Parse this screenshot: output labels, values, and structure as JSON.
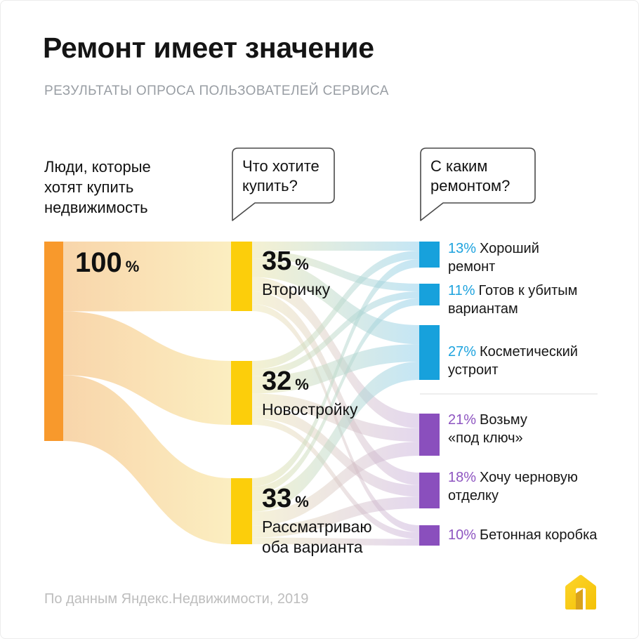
{
  "page": {
    "title": "Ремонт имеет значение",
    "subtitle": "РЕЗУЛЬТАТЫ ОПРОСА ПОЛЬЗОВАТЕЛЕЙ СЕРВИСА",
    "footer": "По данным Яндекс.Недвижимости, 2019",
    "logo": "yandex-realty-house"
  },
  "annotations": {
    "left_group": "Люди, которые\nхотят купить\nнедвижимость",
    "question_mid": "Что хотите\nкупить?",
    "question_right": "С каким\nремонтом?"
  },
  "chart_data": {
    "type": "sankey",
    "percent_sign": "%",
    "columns": [
      "Люди, которые хотят купить недвижимость",
      "Что хотите купить?",
      "С каким ремонтом?"
    ],
    "nodes": [
      {
        "id": "all",
        "col": 0,
        "value": 100,
        "pct": "100",
        "label": "",
        "group": "orange",
        "color": "#F8992C"
      },
      {
        "id": "secondary",
        "col": 1,
        "value": 35,
        "pct": "35",
        "label": "Вторичку",
        "group": "yellow",
        "color": "#FCCE0B"
      },
      {
        "id": "newbuild",
        "col": 1,
        "value": 32,
        "pct": "32",
        "label": "Новостройку",
        "group": "yellow",
        "color": "#FCCE0B"
      },
      {
        "id": "both",
        "col": 1,
        "value": 33,
        "pct": "33",
        "label": "Рассматриваю\nоба варианта",
        "group": "yellow",
        "color": "#FCCE0B"
      },
      {
        "id": "good",
        "col": 2,
        "value": 13,
        "pct_label": "13%",
        "label": "Хороший\nремонт",
        "group": "blue",
        "color": "#17A1DC"
      },
      {
        "id": "wrecked",
        "col": 2,
        "value": 11,
        "pct_label": "11%",
        "label": "Готов к убитым\nвариантам",
        "group": "blue",
        "color": "#17A1DC"
      },
      {
        "id": "cosmetic",
        "col": 2,
        "value": 27,
        "pct_label": "27%",
        "label": "Косметический\nустроит",
        "group": "blue",
        "color": "#17A1DC"
      },
      {
        "id": "turnkey",
        "col": 2,
        "value": 21,
        "pct_label": "21%",
        "label": "Возьму\n«под ключ»",
        "group": "purple",
        "color": "#8A4FBD"
      },
      {
        "id": "rough",
        "col": 2,
        "value": 18,
        "pct_label": "18%",
        "label": "Хочу черновую\nотделку",
        "group": "purple",
        "color": "#8A4FBD"
      },
      {
        "id": "concrete",
        "col": 2,
        "value": 10,
        "pct_label": "10%",
        "label": "Бетонная коробка",
        "group": "purple",
        "color": "#8A4FBD"
      }
    ],
    "links": [
      {
        "source": "all",
        "target": "secondary",
        "value": 35
      },
      {
        "source": "all",
        "target": "newbuild",
        "value": 32
      },
      {
        "source": "all",
        "target": "both",
        "value": 33
      },
      {
        "source": "secondary",
        "target": "good",
        "value": 4.6
      },
      {
        "source": "secondary",
        "target": "wrecked",
        "value": 3.9
      },
      {
        "source": "secondary",
        "target": "cosmetic",
        "value": 9.4
      },
      {
        "source": "secondary",
        "target": "turnkey",
        "value": 7.3
      },
      {
        "source": "secondary",
        "target": "rough",
        "value": 6.3
      },
      {
        "source": "secondary",
        "target": "concrete",
        "value": 3.5
      },
      {
        "source": "newbuild",
        "target": "good",
        "value": 4.2
      },
      {
        "source": "newbuild",
        "target": "wrecked",
        "value": 3.5
      },
      {
        "source": "newbuild",
        "target": "cosmetic",
        "value": 8.6
      },
      {
        "source": "newbuild",
        "target": "turnkey",
        "value": 6.7
      },
      {
        "source": "newbuild",
        "target": "rough",
        "value": 5.8
      },
      {
        "source": "newbuild",
        "target": "concrete",
        "value": 3.2
      },
      {
        "source": "both",
        "target": "good",
        "value": 4.2
      },
      {
        "source": "both",
        "target": "wrecked",
        "value": 3.6
      },
      {
        "source": "both",
        "target": "cosmetic",
        "value": 9.0
      },
      {
        "source": "both",
        "target": "turnkey",
        "value": 7.0
      },
      {
        "source": "both",
        "target": "rough",
        "value": 5.9
      },
      {
        "source": "both",
        "target": "concrete",
        "value": 3.3
      }
    ],
    "accent_colors": {
      "pct_blue": "#1EA3DE",
      "pct_purple": "#8E55C1",
      "orange": "#F8992C",
      "yellow": "#FCCE0B",
      "blue": "#17A1DC",
      "purple": "#8A4FBD"
    }
  }
}
